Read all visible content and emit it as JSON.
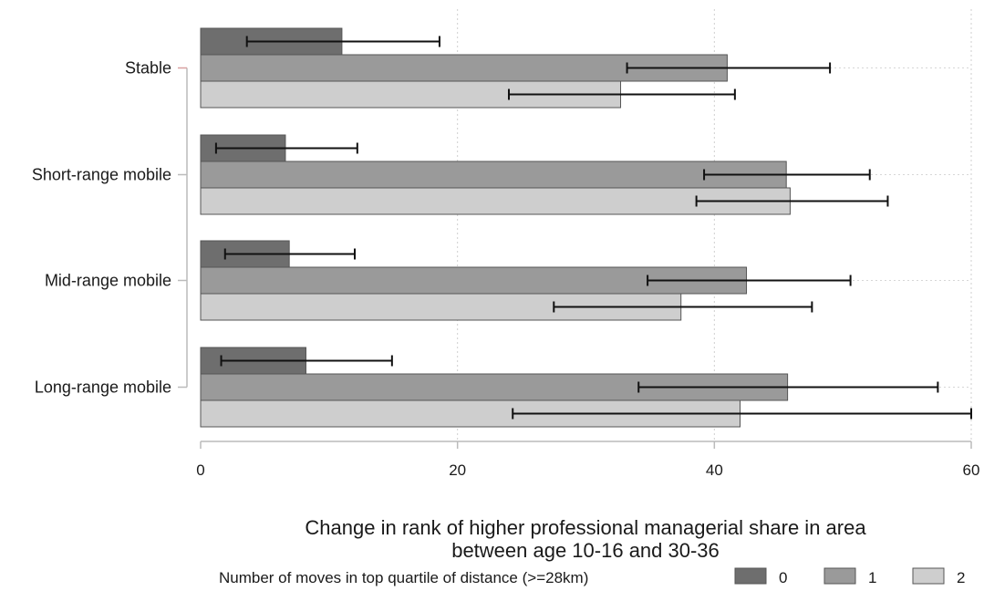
{
  "chart_data": {
    "type": "bar",
    "orientation": "horizontal",
    "categories": [
      "Stable",
      "Short-range mobile",
      "Mid-range mobile",
      "Long-range mobile"
    ],
    "series": [
      {
        "name": "0",
        "color": "#6e6e6e",
        "values": [
          11.0,
          6.6,
          6.9,
          8.2
        ],
        "ci_low": [
          3.6,
          1.2,
          1.9,
          1.6
        ],
        "ci_high": [
          18.6,
          12.2,
          12.0,
          14.9
        ]
      },
      {
        "name": "1",
        "color": "#9a9a9a",
        "values": [
          41.0,
          45.6,
          42.5,
          45.7
        ],
        "ci_low": [
          33.2,
          39.2,
          34.8,
          34.1
        ],
        "ci_high": [
          49.0,
          52.1,
          50.6,
          57.4
        ]
      },
      {
        "name": "2",
        "color": "#cecece",
        "values": [
          32.7,
          45.9,
          37.4,
          42.0
        ],
        "ci_low": [
          24.0,
          38.6,
          27.5,
          24.3
        ],
        "ci_high": [
          41.6,
          53.5,
          47.6,
          60.0
        ]
      }
    ],
    "xlim": [
      0,
      60
    ],
    "xticks": [
      "0",
      "20",
      "40",
      "60"
    ],
    "xlabel_line1": "Change in rank of higher professional managerial share in area",
    "xlabel_line2": "between age 10-16 and 30-36",
    "legend_title": "Number of moves in top quartile of distance (>=28km)",
    "legend_position": "bottom",
    "grid": "vertical dotted"
  }
}
